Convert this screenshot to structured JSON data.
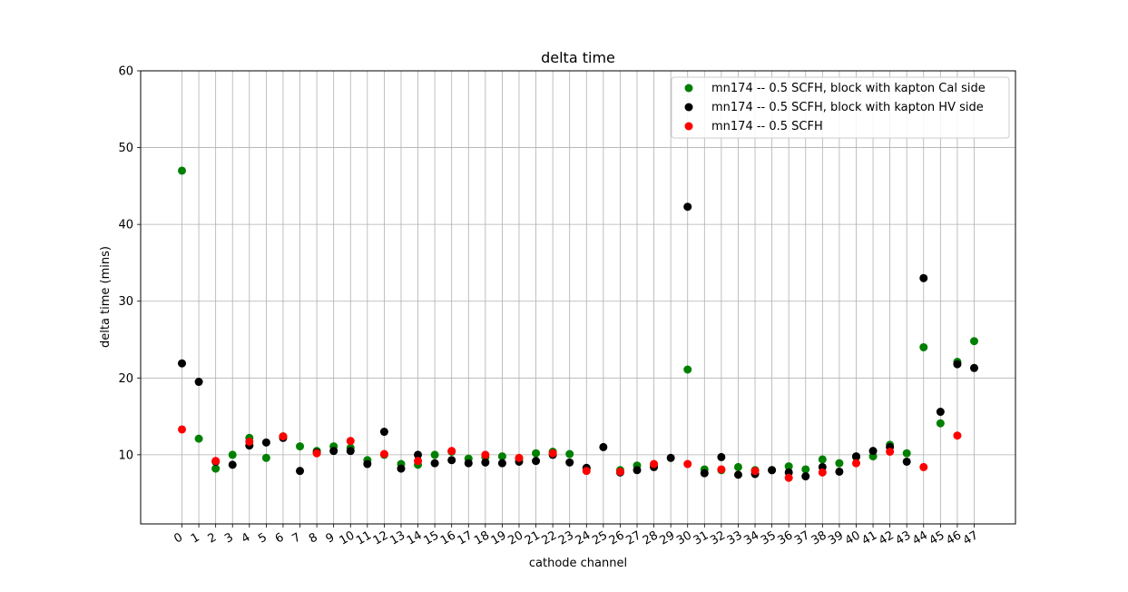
{
  "chart_data": {
    "type": "scatter",
    "title": "delta time",
    "xlabel": "cathode channel",
    "ylabel": "delta time (mins)",
    "ylim": [
      1,
      60
    ],
    "yticks": [
      10,
      20,
      30,
      40,
      50,
      60
    ],
    "grid": true,
    "legend_position": "top-right",
    "x": [
      0,
      1,
      2,
      3,
      4,
      5,
      6,
      7,
      8,
      9,
      10,
      11,
      12,
      13,
      14,
      15,
      16,
      17,
      18,
      19,
      20,
      21,
      22,
      23,
      24,
      25,
      26,
      27,
      28,
      29,
      30,
      31,
      32,
      33,
      34,
      35,
      36,
      37,
      38,
      39,
      40,
      41,
      42,
      43,
      44,
      45,
      46,
      47
    ],
    "series": [
      {
        "name": "mn174 -- 0.5 SCFH, block with kapton Cal side",
        "color": "#008000",
        "points": [
          [
            0,
            47.0
          ],
          [
            1,
            12.1
          ],
          [
            2,
            8.2
          ],
          [
            3,
            10.0
          ],
          [
            4,
            12.2
          ],
          [
            5,
            9.6
          ],
          [
            6,
            12.4
          ],
          [
            7,
            11.1
          ],
          [
            8,
            10.5
          ],
          [
            9,
            11.1
          ],
          [
            10,
            10.9
          ],
          [
            11,
            9.3
          ],
          [
            12,
            10.0
          ],
          [
            13,
            8.8
          ],
          [
            14,
            8.7
          ],
          [
            15,
            10.0
          ],
          [
            16,
            10.4
          ],
          [
            17,
            9.5
          ],
          [
            18,
            9.7
          ],
          [
            19,
            9.8
          ],
          [
            20,
            9.5
          ],
          [
            21,
            10.2
          ],
          [
            22,
            10.4
          ],
          [
            23,
            10.1
          ],
          [
            24,
            8.2
          ],
          [
            26,
            8.0
          ],
          [
            27,
            8.6
          ],
          [
            28,
            8.6
          ],
          [
            30,
            21.1
          ],
          [
            31,
            8.1
          ],
          [
            32,
            8.0
          ],
          [
            33,
            8.4
          ],
          [
            34,
            8.0
          ],
          [
            35,
            8.0
          ],
          [
            36,
            8.5
          ],
          [
            37,
            8.1
          ],
          [
            38,
            9.4
          ],
          [
            39,
            8.9
          ],
          [
            40,
            9.7
          ],
          [
            41,
            9.8
          ],
          [
            42,
            11.3
          ],
          [
            43,
            10.2
          ],
          [
            44,
            24.0
          ],
          [
            45,
            14.1
          ],
          [
            46,
            22.1
          ],
          [
            47,
            24.8
          ]
        ]
      },
      {
        "name": "mn174 -- 0.5 SCFH, block with kapton HV side",
        "color": "#000000",
        "points": [
          [
            0,
            21.9
          ],
          [
            1,
            19.5
          ],
          [
            2,
            9.1
          ],
          [
            3,
            8.7
          ],
          [
            4,
            11.2
          ],
          [
            5,
            11.6
          ],
          [
            6,
            12.2
          ],
          [
            7,
            7.9
          ],
          [
            8,
            10.3
          ],
          [
            9,
            10.5
          ],
          [
            10,
            10.5
          ],
          [
            11,
            8.8
          ],
          [
            12,
            13.0
          ],
          [
            13,
            8.2
          ],
          [
            14,
            10.0
          ],
          [
            15,
            8.9
          ],
          [
            16,
            9.3
          ],
          [
            17,
            8.9
          ],
          [
            18,
            9.0
          ],
          [
            19,
            8.9
          ],
          [
            20,
            9.1
          ],
          [
            21,
            9.2
          ],
          [
            22,
            10.0
          ],
          [
            23,
            9.0
          ],
          [
            24,
            8.3
          ],
          [
            25,
            11.0
          ],
          [
            26,
            7.7
          ],
          [
            27,
            8.0
          ],
          [
            28,
            8.4
          ],
          [
            29,
            9.6
          ],
          [
            30,
            42.3
          ],
          [
            31,
            7.6
          ],
          [
            32,
            9.7
          ],
          [
            33,
            7.4
          ],
          [
            34,
            7.5
          ],
          [
            35,
            8.0
          ],
          [
            36,
            7.7
          ],
          [
            37,
            7.2
          ],
          [
            38,
            8.4
          ],
          [
            39,
            7.8
          ],
          [
            40,
            9.8
          ],
          [
            41,
            10.5
          ],
          [
            42,
            11.0
          ],
          [
            43,
            9.1
          ],
          [
            44,
            33.0
          ],
          [
            45,
            15.6
          ],
          [
            46,
            21.8
          ],
          [
            47,
            21.3
          ]
        ]
      },
      {
        "name": "mn174 -- 0.5 SCFH",
        "color": "#ff0000",
        "points": [
          [
            0,
            13.3
          ],
          [
            2,
            9.2
          ],
          [
            4,
            11.7
          ],
          [
            6,
            12.4
          ],
          [
            8,
            10.2
          ],
          [
            10,
            11.8
          ],
          [
            12,
            10.1
          ],
          [
            14,
            9.2
          ],
          [
            16,
            10.5
          ],
          [
            18,
            10.0
          ],
          [
            20,
            9.6
          ],
          [
            22,
            10.2
          ],
          [
            24,
            7.9
          ],
          [
            26,
            7.8
          ],
          [
            28,
            8.8
          ],
          [
            30,
            8.8
          ],
          [
            32,
            8.1
          ],
          [
            34,
            7.9
          ],
          [
            36,
            7.0
          ],
          [
            38,
            7.7
          ],
          [
            40,
            8.9
          ],
          [
            42,
            10.4
          ],
          [
            44,
            8.4
          ],
          [
            46,
            12.5
          ]
        ]
      }
    ]
  }
}
